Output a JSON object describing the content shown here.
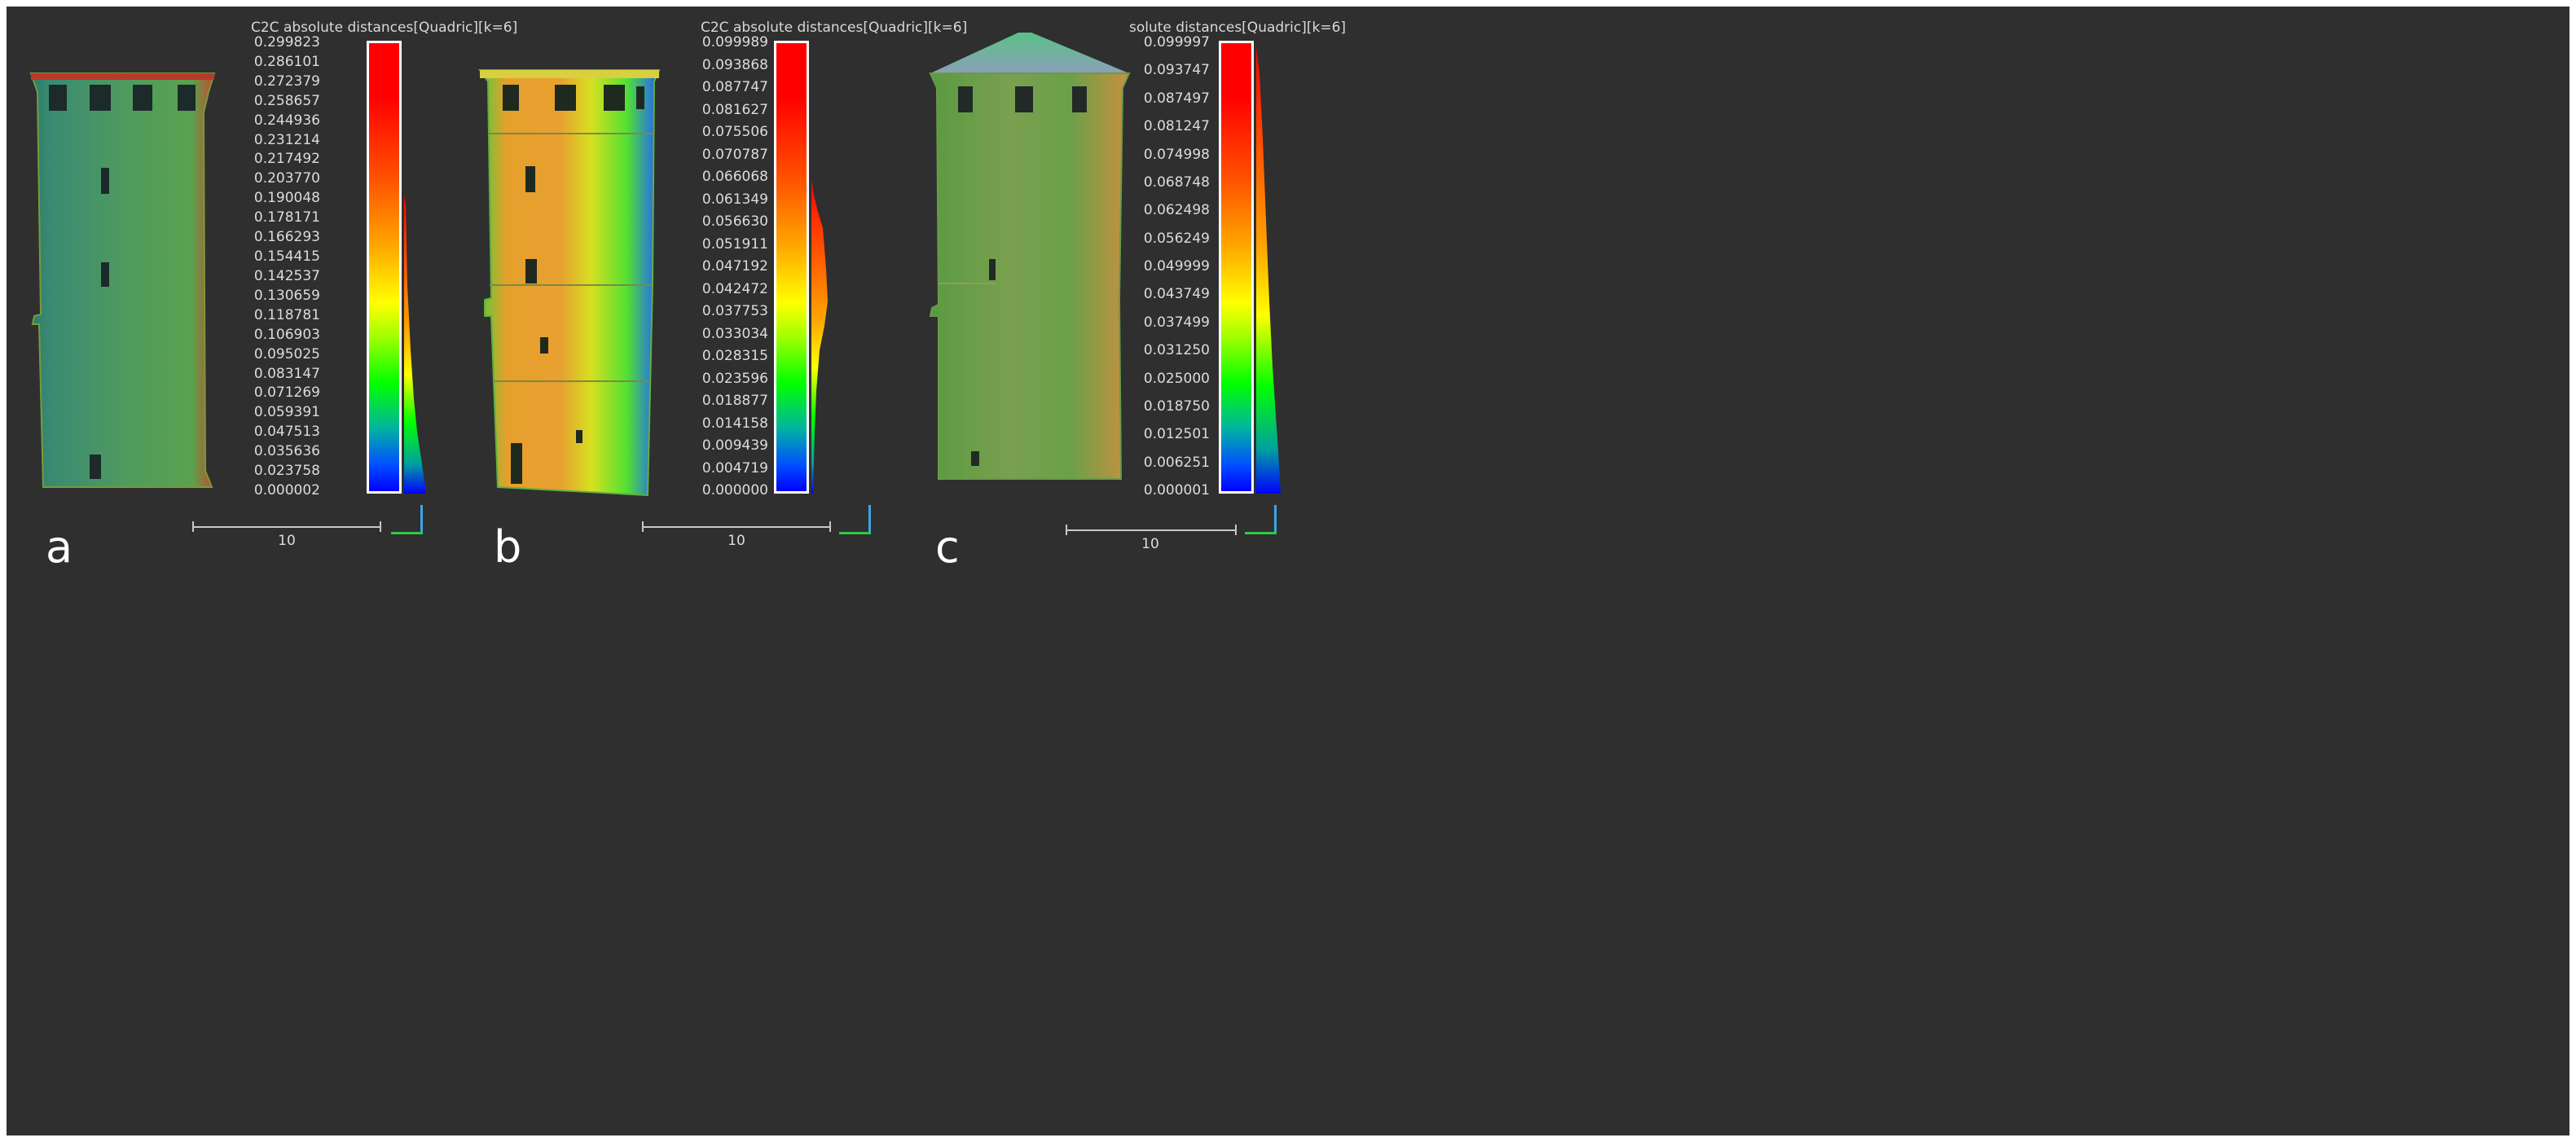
{
  "panels": [
    {
      "letter": "a",
      "title": "C2C absolute distances[Quadric][k=6]",
      "ticks": [
        "0.299823",
        "0.286101",
        "0.272379",
        "0.258657",
        "0.244936",
        "0.231214",
        "0.217492",
        "0.203770",
        "0.190048",
        "0.178171",
        "0.166293",
        "0.154415",
        "0.142537",
        "0.130659",
        "0.118781",
        "0.106903",
        "0.095025",
        "0.083147",
        "0.071269",
        "0.059391",
        "0.047513",
        "0.035636",
        "0.023758",
        "0.000002"
      ],
      "scale_label": "10"
    },
    {
      "letter": "b",
      "title": "C2C absolute distances[Quadric][k=6]",
      "ticks": [
        "0.099989",
        "0.093868",
        "0.087747",
        "0.081627",
        "0.075506",
        "0.070787",
        "0.066068",
        "0.061349",
        "0.056630",
        "0.051911",
        "0.047192",
        "0.042472",
        "0.037753",
        "0.033034",
        "0.028315",
        "0.023596",
        "0.018877",
        "0.014158",
        "0.009439",
        "0.004719",
        "0.000000"
      ],
      "scale_label": "10"
    },
    {
      "letter": "c",
      "title": "solute distances[Quadric][k=6]",
      "ticks": [
        "0.099997",
        "0.093747",
        "0.087497",
        "0.081247",
        "0.074998",
        "0.068748",
        "0.062498",
        "0.056249",
        "0.049999",
        "0.043749",
        "0.037499",
        "0.031250",
        "0.025000",
        "0.018750",
        "0.012501",
        "0.006251",
        "0.000001"
      ],
      "scale_label": "10"
    }
  ],
  "colors": {
    "background": "#2f2f2f",
    "scalar_max": "#ff0000",
    "scalar_mid": "#ffff00",
    "scalar_low": "#00ff00",
    "scalar_min": "#0000ff",
    "axis_x": "#2ec84a",
    "axis_z": "#3aa6e8"
  }
}
